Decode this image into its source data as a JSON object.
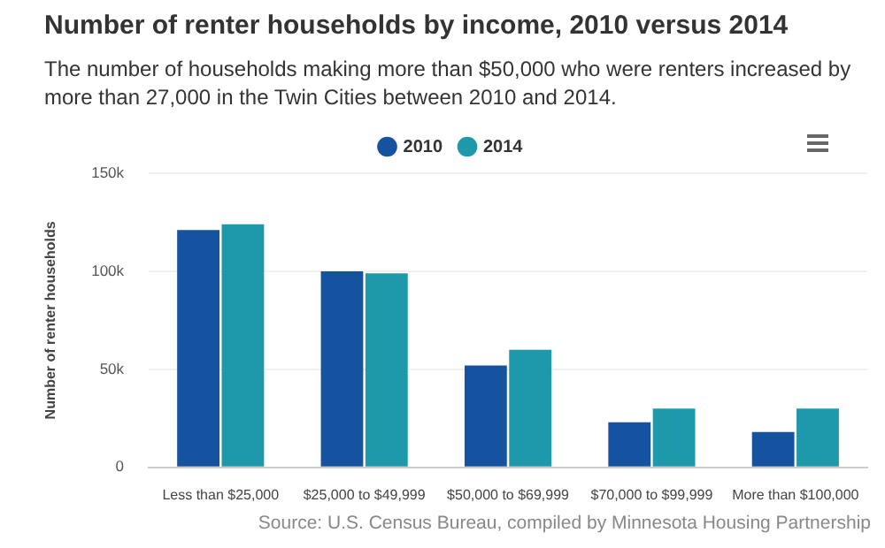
{
  "chart_data": {
    "type": "bar",
    "title": "Number of renter households by income, 2010 versus 2014",
    "subtitle": "The number of households making more than $50,000 who were renters increased by more than 27,000 in the Twin Cities between 2010 and 2014.",
    "ylabel": "Number of renter households",
    "categories": [
      "Less than $25,000",
      "$25,000 to $49,999",
      "$50,000 to $69,999",
      "$70,000 to $99,999",
      "More than $100,000"
    ],
    "series": [
      {
        "name": "2010",
        "color": "#1553a0",
        "values": [
          121000,
          100000,
          52000,
          23000,
          18000
        ]
      },
      {
        "name": "2014",
        "color": "#1e98ab",
        "values": [
          124000,
          99000,
          60000,
          30000,
          30000
        ]
      }
    ],
    "ylim": [
      0,
      150000
    ],
    "yticks": [
      {
        "value": 0,
        "label": "0"
      },
      {
        "value": 50000,
        "label": "50k"
      },
      {
        "value": 100000,
        "label": "100k"
      },
      {
        "value": 150000,
        "label": "150k"
      }
    ],
    "grid": "y",
    "legend": "top",
    "annotations": [
      "Source: U.S. Census Bureau, compiled by Minnesota Housing Partnership"
    ]
  }
}
